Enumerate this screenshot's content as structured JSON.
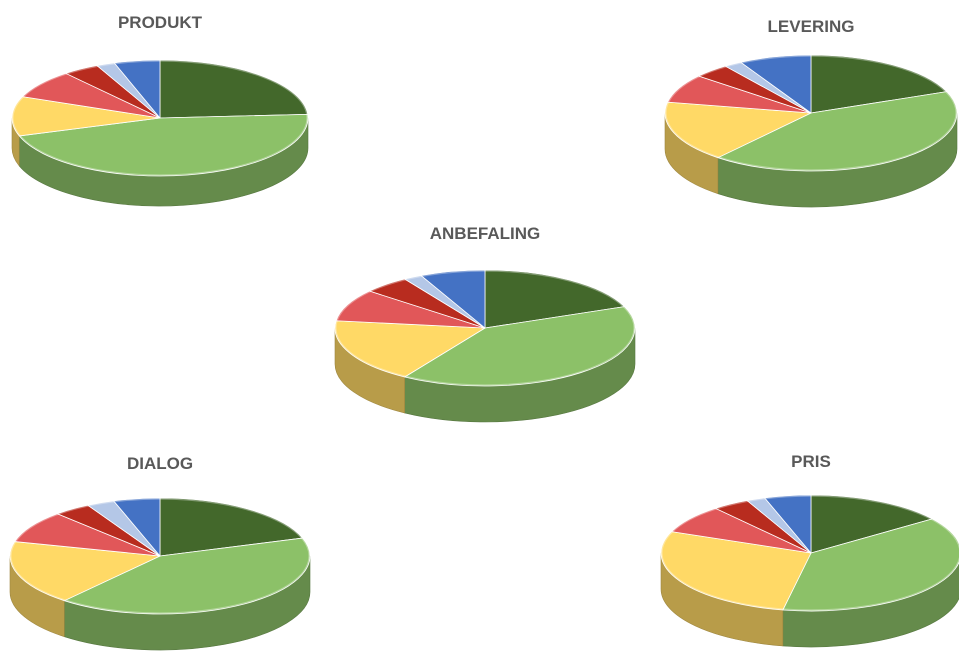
{
  "colors": {
    "slice_1": "#43682B",
    "slice_2": "#8CC168",
    "slice_3": "#FFD966",
    "slice_4": "#E15759",
    "slice_5": "#B82C1F",
    "slice_6": "#B4C7E7",
    "slice_7": "#4472C4",
    "title_text": "#595959"
  },
  "chart_data": [
    {
      "type": "pie",
      "title": "PRODUKT",
      "style": "3d",
      "values": [
        24,
        46,
        11,
        8,
        4,
        2,
        5
      ],
      "legend": "none"
    },
    {
      "type": "pie",
      "title": "LEVERING",
      "style": "3d",
      "values": [
        19,
        42,
        17,
        8,
        4,
        2,
        8
      ],
      "legend": "none"
    },
    {
      "type": "pie",
      "title": "ANBEFALING",
      "style": "3d",
      "values": [
        19,
        40,
        18,
        9,
        5,
        2,
        7
      ],
      "legend": "none"
    },
    {
      "type": "pie",
      "title": "DIALOG",
      "style": "3d",
      "values": [
        20,
        41,
        18,
        9,
        4,
        3,
        5
      ],
      "legend": "none"
    },
    {
      "type": "pie",
      "title": "PRIS",
      "style": "3d",
      "values": [
        15,
        38,
        28,
        8,
        4,
        2,
        5
      ],
      "legend": "none"
    }
  ]
}
